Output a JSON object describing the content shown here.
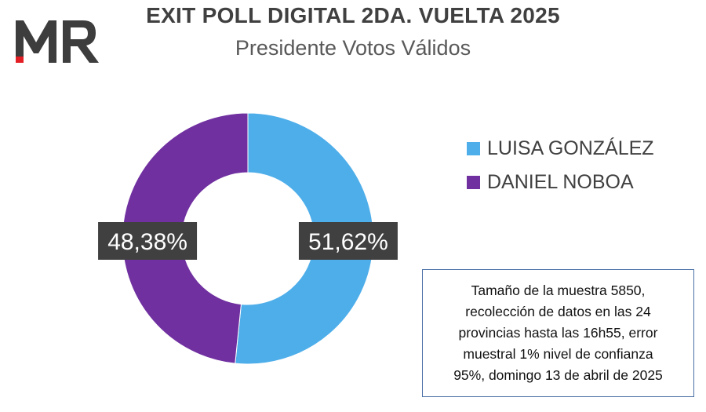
{
  "logo": {
    "text": "MR",
    "name": "mr-logo",
    "colors": {
      "primary": "#3d3d3d",
      "accent": "#e31e24"
    }
  },
  "header": {
    "title": "EXIT POLL DIGITAL 2DA. VUELTA 2025",
    "subtitle": "Presidente Votos Válidos"
  },
  "chart_data": {
    "type": "pie",
    "style": "donut",
    "title": "EXIT POLL DIGITAL 2DA. VUELTA 2025",
    "subtitle": "Presidente Votos Válidos",
    "categories": [
      "LUISA GONZÁLEZ",
      "DANIEL NOBOA"
    ],
    "values": [
      51.62,
      48.38
    ],
    "value_labels": [
      "51,62%",
      "48,38%"
    ],
    "colors": [
      "#4eaeea",
      "#7030a0"
    ],
    "legend_position": "right",
    "label_background": "#404040",
    "label_color": "#ffffff"
  },
  "note": {
    "text": "Tamaño de la muestra 5850,\nrecolección de datos en las 24\nprovincias hasta las 16h55, error\nmuestral 1% nivel de confianza\n95%, domingo 13 de abril de 2025"
  }
}
